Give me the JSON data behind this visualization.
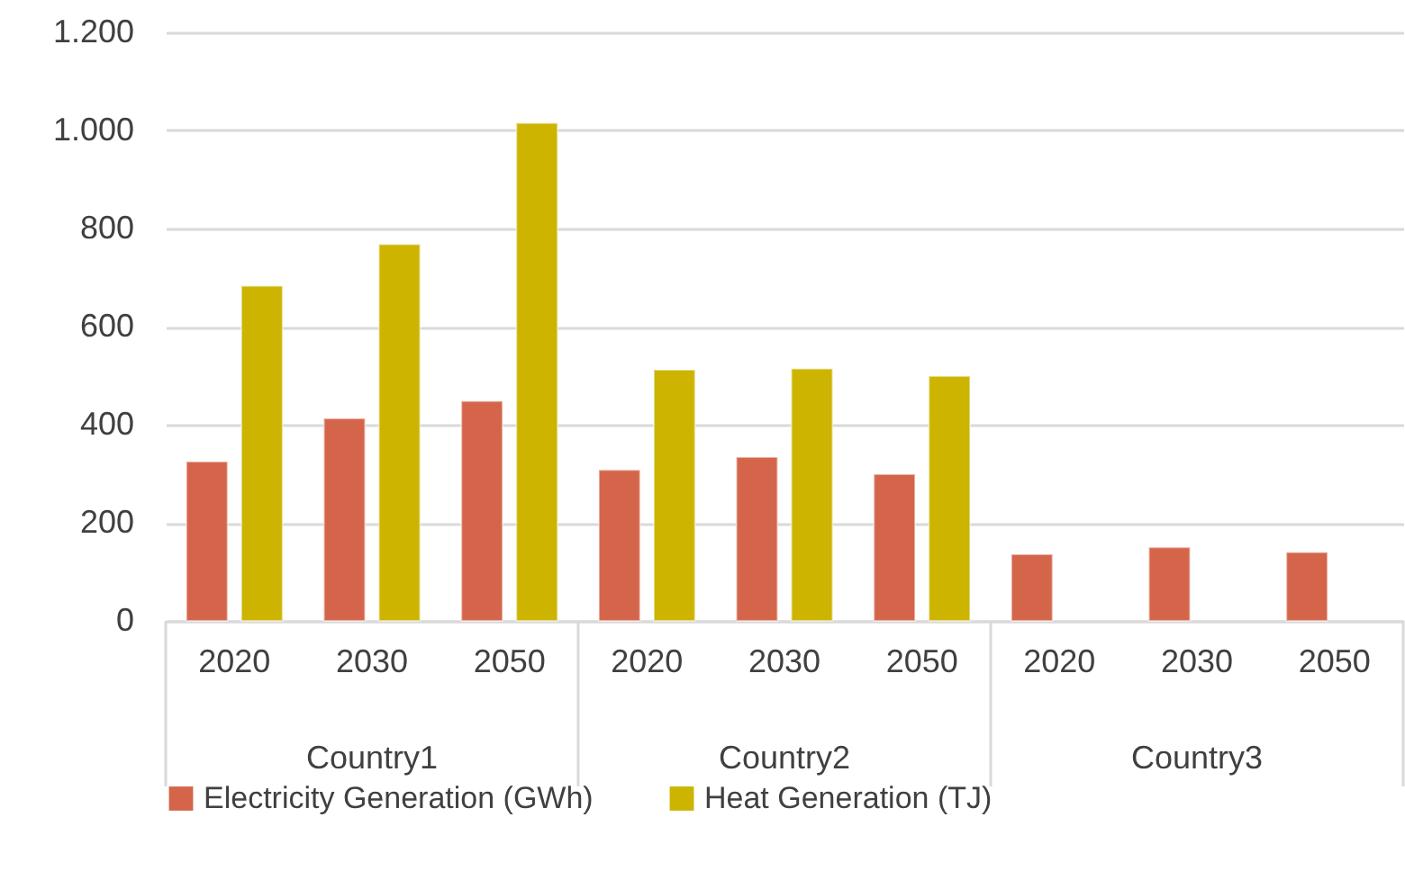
{
  "chart_data": {
    "type": "bar",
    "categories": [
      "2020",
      "2030",
      "2050",
      "2020",
      "2030",
      "2050",
      "2020",
      "2030",
      "2050"
    ],
    "series": [
      {
        "name": "Electricity Generation (GWh)",
        "color": "#d4654b",
        "values": [
          325,
          413,
          448,
          308,
          334,
          299,
          136,
          150,
          140
        ]
      },
      {
        "name": "Heat Generation (TJ)",
        "color": "#ccb400",
        "values": [
          683,
          768,
          1015,
          512,
          514,
          499,
          null,
          null,
          null
        ]
      }
    ],
    "ylim": [
      0,
      1200
    ],
    "yticks": [
      0,
      200,
      400,
      600,
      800,
      {
        "value": 1000,
        "label": "1.000"
      },
      {
        "value": 1200,
        "label": "1.200"
      }
    ],
    "grid": "y",
    "legend": "bottom",
    "annotations": [
      "Country1",
      "Country2",
      "Country3"
    ]
  }
}
